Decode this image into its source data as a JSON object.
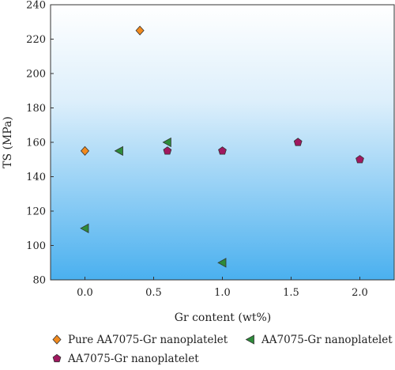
{
  "chart_data": {
    "type": "scatter",
    "xlabel": "Gr content (wt%)",
    "ylabel": "TS (MPa)",
    "xlim": [
      -0.25,
      2.25
    ],
    "ylim": [
      80,
      240
    ],
    "x_ticks": [
      "0.0",
      "0.5",
      "1.0",
      "1.5",
      "2.0"
    ],
    "y_ticks": [
      "80",
      "100",
      "120",
      "140",
      "160",
      "180",
      "200",
      "220",
      "240"
    ],
    "grid": false,
    "legend_position": "bottom",
    "background": "vertical gradient, white top to sky blue bottom",
    "series": [
      {
        "name": "Pure AA7075-Gr nanoplatelet",
        "marker": "diamond",
        "color": "#F28A1E",
        "points": [
          [
            0.0,
            155
          ],
          [
            0.4,
            225
          ]
        ]
      },
      {
        "name": "AA7075-Gr nanoplatelet",
        "marker": "triangle-left",
        "color": "#2E8B3A",
        "points": [
          [
            0.0,
            110
          ],
          [
            0.25,
            155
          ],
          [
            0.6,
            160
          ],
          [
            1.0,
            90
          ]
        ]
      },
      {
        "name": "AA7075-Gr nanoplatelet",
        "marker": "pentagon",
        "color": "#A0185F",
        "points": [
          [
            0.6,
            155
          ],
          [
            1.0,
            155
          ],
          [
            1.55,
            160
          ],
          [
            2.0,
            150
          ]
        ]
      }
    ]
  }
}
